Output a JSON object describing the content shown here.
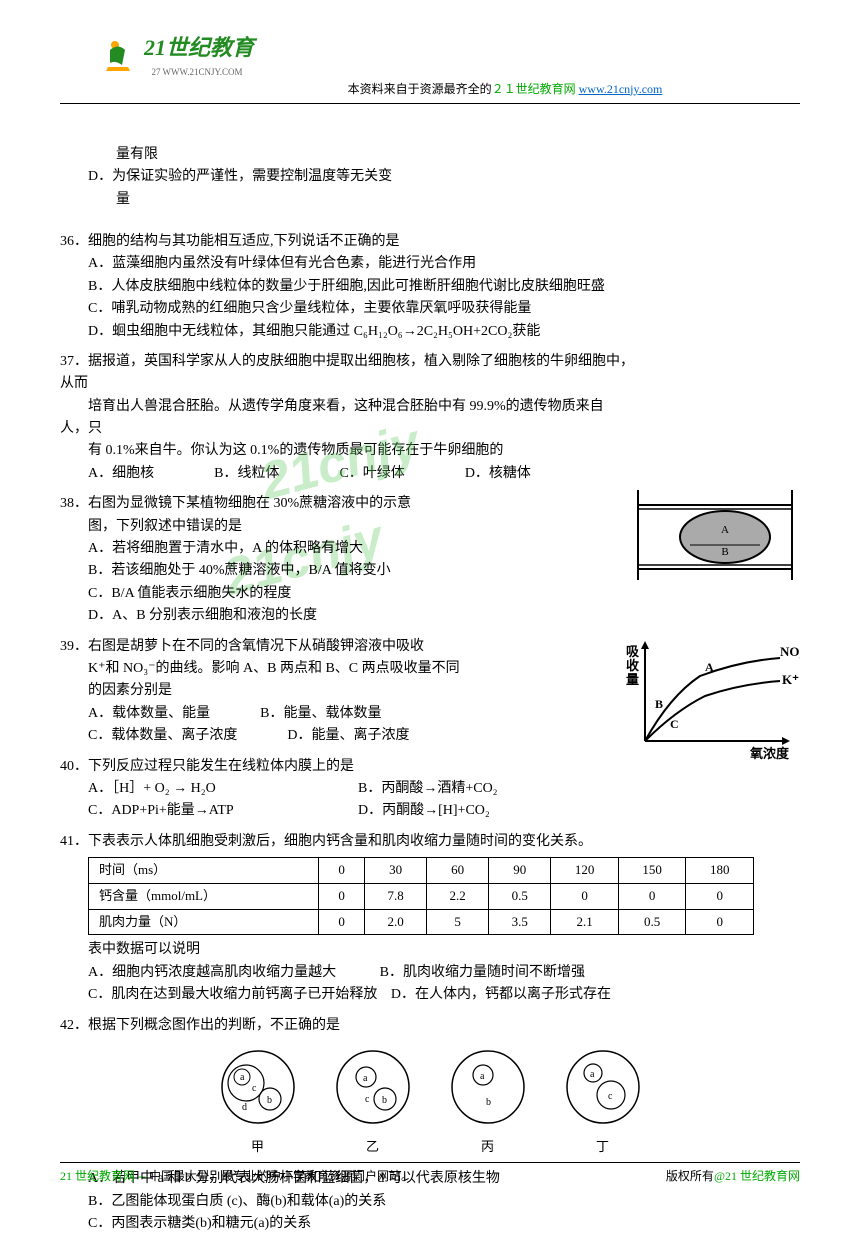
{
  "header": {
    "logo_text": "21世纪教育",
    "logo_url": "27 WWW.21CNJY.COM",
    "source_prefix": "本资料来自于资源最齐全的",
    "source_highlight": "２１世纪教育网",
    "source_link": "www.21cnjy.com"
  },
  "watermark": "21cnjy",
  "q35_cont": {
    "line1": "量有限",
    "optD": "D．为保证实验的严谨性，需要控制温度等无关变",
    "line3": "量"
  },
  "q36": {
    "stem": "36．细胞的结构与其功能相互适应,下列说话不正确的是",
    "optA": "A．蓝藻细胞内虽然没有叶绿体但有光合色素，能进行光合作用",
    "optB": "B．人体皮肤细胞中线粒体的数量少于肝细胞,因此可推断肝细胞代谢比皮肤细胞旺盛",
    "optC": "C．哺乳动物成熟的红细胞只含少量线粒体，主要依靠厌氧呼吸获得能量",
    "optD": "D．蛔虫细胞中无线粒体，其细胞只能通过 C₆H₁₂O₆→2C₂H₅OH+2CO₂获能"
  },
  "q37": {
    "line1": "37．据报道，英国科学家从人的皮肤细胞中提取出细胞核，植入剔除了细胞核的牛卵细胞中，",
    "line2": "从而",
    "line3": "培育出人兽混合胚胎。从遗传学角度来看，这种混合胚胎中有 99.9%的遗传物质来自",
    "line4": "人，只",
    "line5": "有 0.1%来自牛。你认为这 0.1%的遗传物质最可能存在于牛卵细胞的",
    "optA": "A．细胞核",
    "optB": "B．线粒体",
    "optC": "C．叶绿体",
    "optD": "D．核糖体"
  },
  "q38": {
    "stem": "38．右图为显微镜下某植物细胞在 30%蔗糖溶液中的示意",
    "line2": "图，下列叙述中错误的是",
    "optA": "A．若将细胞置于清水中，A 的体积略有增大",
    "optB": "B．若该细胞处于 40%蔗糖溶液中，B/A 值将变小",
    "optC": "C．B/A 值能表示细胞失水的程度",
    "optD": "D．A、B 分别表示细胞和液泡的长度"
  },
  "q39": {
    "stem": "39．右图是胡萝卜在不同的含氧情况下从硝酸钾溶液中吸收",
    "line2": "K⁺和 NO₃⁻的曲线。影响 A、B 两点和 B、C 两点吸收量不同",
    "line3": "的因素分别是",
    "optA": "A．载体数量、能量",
    "optB": "B．能量、载体数量",
    "optC": "C．载体数量、离子浓度",
    "optD": "D．能量、离子浓度",
    "graph_ylabel": "吸收量",
    "graph_xlabel": "氧浓度",
    "graph_line1": "NO₃⁻",
    "graph_line2": "K⁺"
  },
  "q40": {
    "stem": "40．下列反应过程只能发生在线粒体内膜上的是",
    "optA": "A．［H］+ O₂ → H₂O",
    "optB": "B．丙酮酸→酒精+CO₂",
    "optC": "C．ADP+Pi+能量→ATP",
    "optD": "D．丙酮酸→[H]+CO₂"
  },
  "q41": {
    "stem": "41．下表表示人体肌细胞受刺激后，细胞内钙含量和肌肉收缩力量随时间的变化关系。",
    "table": {
      "headers": [
        "时间（ms）",
        "0",
        "30",
        "60",
        "90",
        "120",
        "150",
        "180"
      ],
      "row1": [
        "钙含量（mmol/mL）",
        "0",
        "7.8",
        "2.2",
        "0.5",
        "0",
        "0",
        "0"
      ],
      "row2": [
        "肌肉力量（N）",
        "0",
        "2.0",
        "5",
        "3.5",
        "2.1",
        "0.5",
        "0"
      ]
    },
    "line2": "表中数据可以说明",
    "optA": "A．细胞内钙浓度越高肌肉收缩力量越大",
    "optB": "B．肌肉收缩力量随时间不断增强",
    "optC": "C．肌肉在达到最大收缩力前钙离子已开始释放",
    "optD": "D．在人体内，钙都以离子形式存在"
  },
  "q42": {
    "stem": "42．根据下列概念图作出的判断，不正确的是",
    "labels": [
      "甲",
      "乙",
      "丙",
      "丁"
    ],
    "optA": "A．若甲中 a 和 b 分别代表大肠杆菌和蓝细菌，d 可以代表原核生物",
    "optB": "B．乙图能体现蛋白质 (c)、酶(b)和载体(a)的关系",
    "optC": "C．丙图表示糖类(b)和糖元(a)的关系"
  },
  "footer": {
    "left_prefix": "21 世纪教育网 -- ",
    "left_text": "中国最大型、最专业的中小学教育资源门户网站。",
    "right_prefix": "版权所有",
    "right_link": "@21 世纪教育网"
  },
  "colors": {
    "green": "#00aa00",
    "blue_link": "#0066cc"
  }
}
